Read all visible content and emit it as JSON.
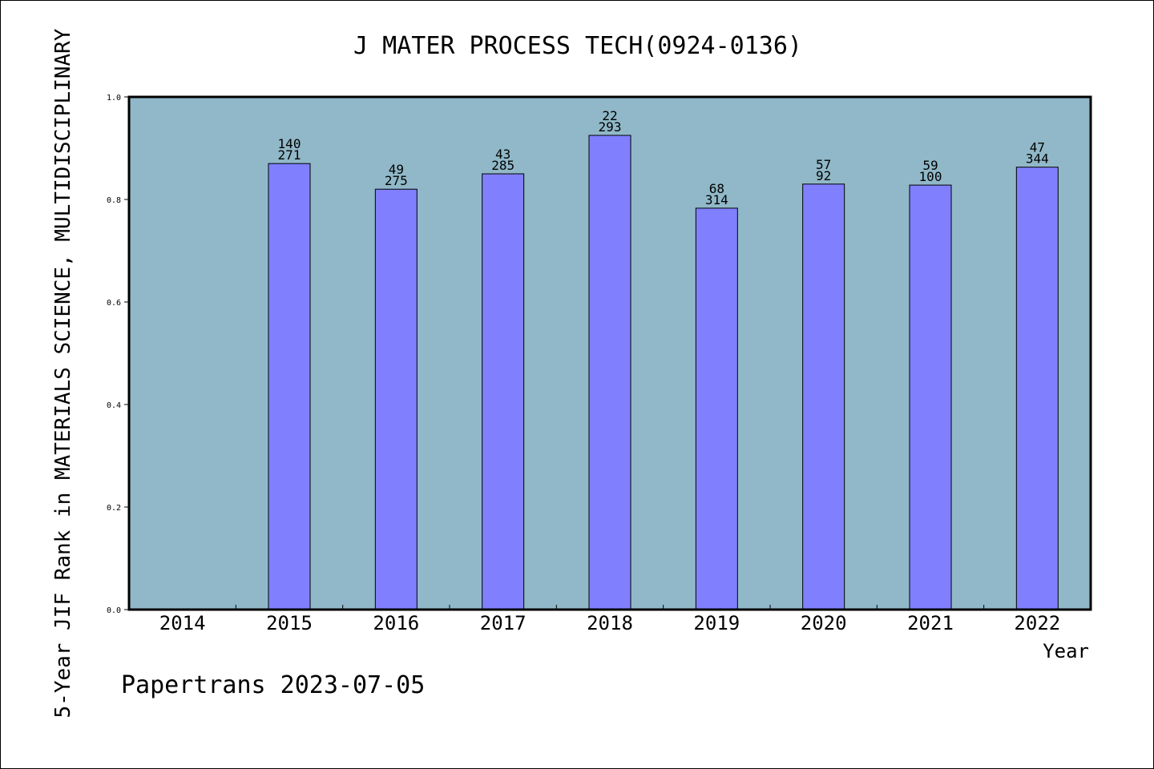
{
  "chart_data": {
    "type": "bar",
    "title": "J MATER PROCESS TECH(0924-0136)",
    "ylabel": "5-Year JIF Rank in MATERIALS SCIENCE, MULTIDISCIPLINARY",
    "xlabel": "Year",
    "ylim": [
      0,
      1.0
    ],
    "yticks": [
      "0.0",
      "0.2",
      "0.4",
      "0.6",
      "0.8",
      "1.0"
    ],
    "categories": [
      "2014",
      "2015",
      "2016",
      "2017",
      "2018",
      "2019",
      "2020",
      "2021",
      "2022"
    ],
    "values": [
      null,
      0.87,
      0.82,
      0.85,
      0.925,
      0.783,
      0.83,
      0.828,
      0.863
    ],
    "rank": [
      null,
      "140",
      "49",
      "43",
      "22",
      "68",
      "57",
      "59",
      "47"
    ],
    "total": [
      null,
      "271",
      "275",
      "285",
      "293",
      "314",
      "92",
      "100",
      "344"
    ],
    "colors": {
      "plot_bg": "#90b8c8",
      "bar": "#8080ff"
    },
    "grid": false,
    "legend": "none"
  },
  "footer": "Papertrans 2023-07-05"
}
